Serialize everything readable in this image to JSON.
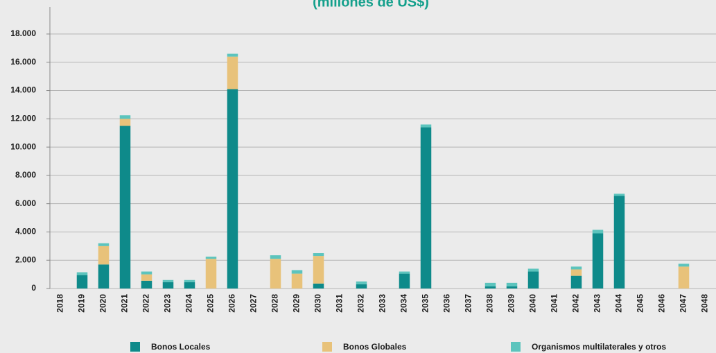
{
  "chart_data": {
    "type": "stacked_bar",
    "title": "(millones de US$)",
    "categories": [
      "2018",
      "2019",
      "2020",
      "2021",
      "2022",
      "2023",
      "2024",
      "2025",
      "2026",
      "2027",
      "2028",
      "2029",
      "2030",
      "2031",
      "2032",
      "2033",
      "2034",
      "2035",
      "2036",
      "2037",
      "2038",
      "2039",
      "2040",
      "2041",
      "2042",
      "2043",
      "2044",
      "2045",
      "2046",
      "2047",
      "2048"
    ],
    "series": [
      {
        "name": "Bonos Locales",
        "color": "#0e8a8a",
        "values": [
          0,
          950,
          1700,
          11500,
          550,
          450,
          450,
          0,
          14100,
          0,
          0,
          0,
          350,
          0,
          300,
          0,
          1050,
          11400,
          0,
          0,
          150,
          150,
          1200,
          0,
          900,
          3900,
          6550,
          0,
          0,
          0,
          0
        ]
      },
      {
        "name": "Bonos Globales",
        "color": "#e8c27a",
        "values": [
          0,
          0,
          1300,
          500,
          450,
          0,
          0,
          2100,
          2300,
          0,
          2100,
          1050,
          1950,
          0,
          0,
          0,
          0,
          0,
          0,
          0,
          0,
          0,
          0,
          0,
          450,
          0,
          0,
          0,
          0,
          1550,
          0
        ]
      },
      {
        "name": "Organismos multilaterales y otros",
        "color": "#5cc4bd",
        "values": [
          0,
          200,
          200,
          250,
          200,
          150,
          150,
          150,
          200,
          0,
          250,
          250,
          200,
          0,
          200,
          0,
          150,
          200,
          0,
          0,
          250,
          250,
          200,
          0,
          200,
          250,
          150,
          0,
          0,
          200,
          0
        ]
      }
    ],
    "ylim": [
      0,
      18000
    ],
    "yticks": [
      0,
      {
        "value": 2000,
        "label": "2.000"
      },
      {
        "value": 4000,
        "label": "4.000"
      },
      {
        "value": 6000,
        "label": "6.000"
      },
      {
        "value": 8000,
        "label": "8.000"
      },
      {
        "value": 10000,
        "label": "10.000"
      },
      {
        "value": 12000,
        "label": "12.000"
      },
      {
        "value": 14000,
        "label": "14.000"
      },
      {
        "value": 16000,
        "label": "16.000"
      },
      {
        "value": 18000,
        "label": "18.000"
      }
    ],
    "grid": true,
    "legend": "bottom"
  }
}
